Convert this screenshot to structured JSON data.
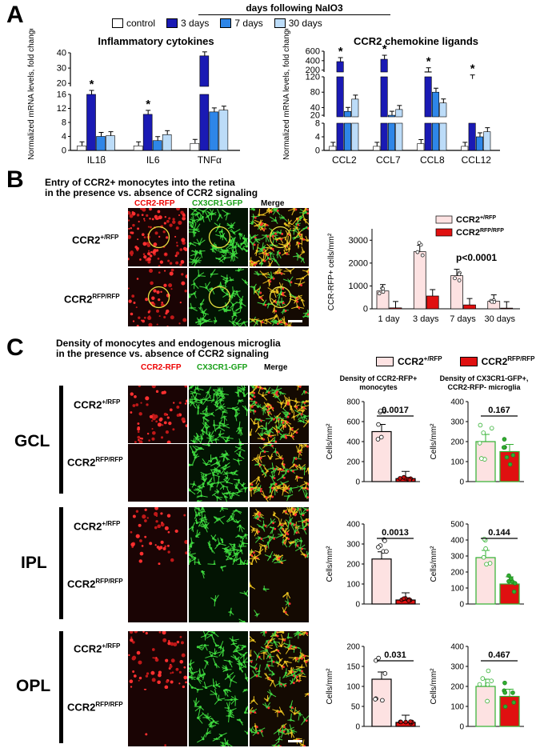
{
  "panelA": {
    "letter": "A",
    "header": "days following NaIO3",
    "legend": [
      "control",
      "3 days",
      "7 days",
      "30 days"
    ],
    "colors": [
      "#ffffff",
      "#1a1ab4",
      "#2e86e8",
      "#bcdcf8"
    ],
    "ylabel": "Normalized mRNA levels, fold change",
    "left": {
      "title": "Inflammatory cytokines",
      "categories": [
        "IL1β",
        "IL6",
        "TNFα"
      ],
      "yticks_low": [
        "0",
        "4",
        "8",
        "12",
        "16"
      ],
      "yticks_high": [
        "20",
        "30",
        "40"
      ],
      "values": [
        [
          1.3,
          16,
          4,
          4.2
        ],
        [
          1.3,
          10.3,
          2.8,
          4.5
        ],
        [
          2,
          38,
          11,
          11.5
        ]
      ],
      "stars": [
        "*",
        "*",
        ""
      ]
    },
    "right": {
      "title": "CCR2 chemokine ligands",
      "categories": [
        "CCL2",
        "CCL7",
        "CCL8",
        "CCL12"
      ],
      "yticks_low": [
        "0",
        "4",
        "8"
      ],
      "yticks_mid": [
        "20",
        "40",
        "80",
        "120"
      ],
      "yticks_high": [
        "200",
        "400",
        "600"
      ],
      "values": [
        [
          1.2,
          380,
          30,
          62
        ],
        [
          1.2,
          430,
          20,
          35
        ],
        [
          2,
          165,
          80,
          52
        ],
        [
          1.2,
          13,
          4,
          5.5
        ]
      ],
      "stars": [
        "*",
        "*",
        "*",
        "*"
      ]
    }
  },
  "panelB": {
    "letter": "B",
    "title1": "Entry of CCR2+ monocytes into the retina",
    "title2": "in the presence vs. absence of CCR2 signaling",
    "col_headers": [
      "CCR2-RFP",
      "CX3CR1-GFP",
      "Merge"
    ],
    "rows": [
      {
        "base": "CCR2",
        "sup": "+/RFP"
      },
      {
        "base": "CCR2",
        "sup": "RFP/RFP"
      }
    ],
    "legend": [
      {
        "base": "CCR2",
        "sup": "+/RFP"
      },
      {
        "base": "CCR2",
        "sup": "RFP/RFP"
      }
    ],
    "pvalue": "p<0.0001",
    "chart_data": {
      "type": "bar",
      "categories": [
        "1 day",
        "3 days",
        "7 days",
        "30 days"
      ],
      "ylabel": "CCR-RFP+ cells/mm²",
      "yticks": [
        "0",
        "1000",
        "2000",
        "3000"
      ],
      "ylim": [
        0,
        3500
      ],
      "series": [
        {
          "name": "CCR2+/RFP",
          "values": [
            780,
            2500,
            1450,
            330
          ]
        },
        {
          "name": "CCR2RFP/RFP",
          "values": [
            40,
            560,
            170,
            30
          ]
        }
      ]
    }
  },
  "panelC": {
    "letter": "C",
    "title1": "Density of monocytes and endogenous microglia",
    "title2": "in the presence vs. absence of CCR2 signaling",
    "col_headers": [
      "CCR2-RFP",
      "CX3CR1-GFP",
      "Merge"
    ],
    "layers": [
      "GCL",
      "IPL",
      "OPL"
    ],
    "rows": [
      {
        "base": "CCR2",
        "sup": "+/RFP"
      },
      {
        "base": "CCR2",
        "sup": "RFP/RFP"
      }
    ],
    "legend": [
      {
        "base": "CCR2",
        "sup": "+/RFP"
      },
      {
        "base": "CCR2",
        "sup": "RFP/RFP"
      }
    ],
    "chart_titles": [
      "Density of CCR2-RFP+ monocytes",
      "Density of CX3CR1-GFP+, CCR2-RFP- microglia"
    ],
    "ylabel": "Cells/mm²",
    "chart_data": [
      {
        "type": "bar",
        "layer": "GCL",
        "cell": "monocytes",
        "yticks": [
          "0",
          "200",
          "400",
          "600",
          "800"
        ],
        "ylim": [
          0,
          800
        ],
        "values": [
          500,
          30
        ],
        "pvalue": "0.0017"
      },
      {
        "type": "bar",
        "layer": "GCL",
        "cell": "microglia",
        "yticks": [
          "0",
          "100",
          "200",
          "300",
          "400"
        ],
        "ylim": [
          0,
          400
        ],
        "values": [
          200,
          150
        ],
        "pvalue": "0.167"
      },
      {
        "type": "bar",
        "layer": "IPL",
        "cell": "monocytes",
        "yticks": [
          "0",
          "100",
          "200",
          "300",
          "400"
        ],
        "ylim": [
          0,
          400
        ],
        "values": [
          225,
          20
        ],
        "pvalue": "0.0013"
      },
      {
        "type": "bar",
        "layer": "IPL",
        "cell": "microglia",
        "yticks": [
          "0",
          "100",
          "200",
          "300",
          "400",
          "500"
        ],
        "ylim": [
          0,
          500
        ],
        "values": [
          290,
          125
        ],
        "pvalue": "0.144"
      },
      {
        "type": "bar",
        "layer": "OPL",
        "cell": "monocytes",
        "yticks": [
          "0",
          "50",
          "100",
          "150",
          "200"
        ],
        "ylim": [
          0,
          200
        ],
        "values": [
          118,
          10
        ],
        "pvalue": "0.031"
      },
      {
        "type": "bar",
        "layer": "OPL",
        "cell": "microglia",
        "yticks": [
          "0",
          "100",
          "200",
          "300",
          "400"
        ],
        "ylim": [
          0,
          400
        ],
        "values": [
          200,
          150
        ],
        "pvalue": "0.467"
      }
    ]
  }
}
